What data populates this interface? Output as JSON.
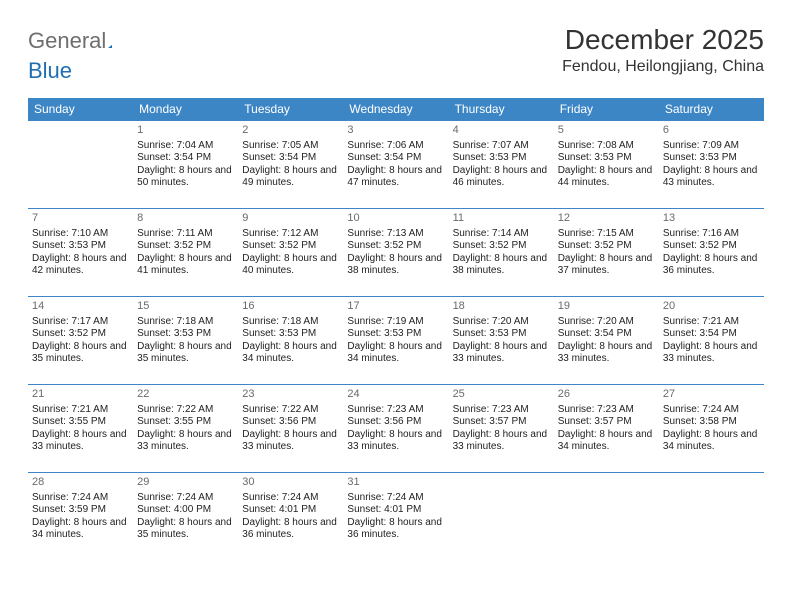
{
  "brand": {
    "part1": "General",
    "part2": "Blue"
  },
  "colors": {
    "header_bg": "#3d86c6",
    "header_text": "#ffffff",
    "row_border": "#3d86c6",
    "title_color": "#333333",
    "body_text": "#222222",
    "daynum_color": "#6a6a6a",
    "logo_gray": "#6e6e6e",
    "logo_blue": "#1f6fb2",
    "background": "#ffffff"
  },
  "typography": {
    "title_fontsize": 28,
    "location_fontsize": 16,
    "header_fontsize": 12,
    "cell_fontsize": 10,
    "daynum_fontsize": 11
  },
  "title": "December 2025",
  "location": "Fendou, Heilongjiang, China",
  "weekdays": [
    "Sunday",
    "Monday",
    "Tuesday",
    "Wednesday",
    "Thursday",
    "Friday",
    "Saturday"
  ],
  "weeks": [
    [
      {
        "day": "",
        "sunrise": "",
        "sunset": "",
        "daylight": ""
      },
      {
        "day": "1",
        "sunrise": "Sunrise: 7:04 AM",
        "sunset": "Sunset: 3:54 PM",
        "daylight": "Daylight: 8 hours and 50 minutes."
      },
      {
        "day": "2",
        "sunrise": "Sunrise: 7:05 AM",
        "sunset": "Sunset: 3:54 PM",
        "daylight": "Daylight: 8 hours and 49 minutes."
      },
      {
        "day": "3",
        "sunrise": "Sunrise: 7:06 AM",
        "sunset": "Sunset: 3:54 PM",
        "daylight": "Daylight: 8 hours and 47 minutes."
      },
      {
        "day": "4",
        "sunrise": "Sunrise: 7:07 AM",
        "sunset": "Sunset: 3:53 PM",
        "daylight": "Daylight: 8 hours and 46 minutes."
      },
      {
        "day": "5",
        "sunrise": "Sunrise: 7:08 AM",
        "sunset": "Sunset: 3:53 PM",
        "daylight": "Daylight: 8 hours and 44 minutes."
      },
      {
        "day": "6",
        "sunrise": "Sunrise: 7:09 AM",
        "sunset": "Sunset: 3:53 PM",
        "daylight": "Daylight: 8 hours and 43 minutes."
      }
    ],
    [
      {
        "day": "7",
        "sunrise": "Sunrise: 7:10 AM",
        "sunset": "Sunset: 3:53 PM",
        "daylight": "Daylight: 8 hours and 42 minutes."
      },
      {
        "day": "8",
        "sunrise": "Sunrise: 7:11 AM",
        "sunset": "Sunset: 3:52 PM",
        "daylight": "Daylight: 8 hours and 41 minutes."
      },
      {
        "day": "9",
        "sunrise": "Sunrise: 7:12 AM",
        "sunset": "Sunset: 3:52 PM",
        "daylight": "Daylight: 8 hours and 40 minutes."
      },
      {
        "day": "10",
        "sunrise": "Sunrise: 7:13 AM",
        "sunset": "Sunset: 3:52 PM",
        "daylight": "Daylight: 8 hours and 38 minutes."
      },
      {
        "day": "11",
        "sunrise": "Sunrise: 7:14 AM",
        "sunset": "Sunset: 3:52 PM",
        "daylight": "Daylight: 8 hours and 38 minutes."
      },
      {
        "day": "12",
        "sunrise": "Sunrise: 7:15 AM",
        "sunset": "Sunset: 3:52 PM",
        "daylight": "Daylight: 8 hours and 37 minutes."
      },
      {
        "day": "13",
        "sunrise": "Sunrise: 7:16 AM",
        "sunset": "Sunset: 3:52 PM",
        "daylight": "Daylight: 8 hours and 36 minutes."
      }
    ],
    [
      {
        "day": "14",
        "sunrise": "Sunrise: 7:17 AM",
        "sunset": "Sunset: 3:52 PM",
        "daylight": "Daylight: 8 hours and 35 minutes."
      },
      {
        "day": "15",
        "sunrise": "Sunrise: 7:18 AM",
        "sunset": "Sunset: 3:53 PM",
        "daylight": "Daylight: 8 hours and 35 minutes."
      },
      {
        "day": "16",
        "sunrise": "Sunrise: 7:18 AM",
        "sunset": "Sunset: 3:53 PM",
        "daylight": "Daylight: 8 hours and 34 minutes."
      },
      {
        "day": "17",
        "sunrise": "Sunrise: 7:19 AM",
        "sunset": "Sunset: 3:53 PM",
        "daylight": "Daylight: 8 hours and 34 minutes."
      },
      {
        "day": "18",
        "sunrise": "Sunrise: 7:20 AM",
        "sunset": "Sunset: 3:53 PM",
        "daylight": "Daylight: 8 hours and 33 minutes."
      },
      {
        "day": "19",
        "sunrise": "Sunrise: 7:20 AM",
        "sunset": "Sunset: 3:54 PM",
        "daylight": "Daylight: 8 hours and 33 minutes."
      },
      {
        "day": "20",
        "sunrise": "Sunrise: 7:21 AM",
        "sunset": "Sunset: 3:54 PM",
        "daylight": "Daylight: 8 hours and 33 minutes."
      }
    ],
    [
      {
        "day": "21",
        "sunrise": "Sunrise: 7:21 AM",
        "sunset": "Sunset: 3:55 PM",
        "daylight": "Daylight: 8 hours and 33 minutes."
      },
      {
        "day": "22",
        "sunrise": "Sunrise: 7:22 AM",
        "sunset": "Sunset: 3:55 PM",
        "daylight": "Daylight: 8 hours and 33 minutes."
      },
      {
        "day": "23",
        "sunrise": "Sunrise: 7:22 AM",
        "sunset": "Sunset: 3:56 PM",
        "daylight": "Daylight: 8 hours and 33 minutes."
      },
      {
        "day": "24",
        "sunrise": "Sunrise: 7:23 AM",
        "sunset": "Sunset: 3:56 PM",
        "daylight": "Daylight: 8 hours and 33 minutes."
      },
      {
        "day": "25",
        "sunrise": "Sunrise: 7:23 AM",
        "sunset": "Sunset: 3:57 PM",
        "daylight": "Daylight: 8 hours and 33 minutes."
      },
      {
        "day": "26",
        "sunrise": "Sunrise: 7:23 AM",
        "sunset": "Sunset: 3:57 PM",
        "daylight": "Daylight: 8 hours and 34 minutes."
      },
      {
        "day": "27",
        "sunrise": "Sunrise: 7:24 AM",
        "sunset": "Sunset: 3:58 PM",
        "daylight": "Daylight: 8 hours and 34 minutes."
      }
    ],
    [
      {
        "day": "28",
        "sunrise": "Sunrise: 7:24 AM",
        "sunset": "Sunset: 3:59 PM",
        "daylight": "Daylight: 8 hours and 34 minutes."
      },
      {
        "day": "29",
        "sunrise": "Sunrise: 7:24 AM",
        "sunset": "Sunset: 4:00 PM",
        "daylight": "Daylight: 8 hours and 35 minutes."
      },
      {
        "day": "30",
        "sunrise": "Sunrise: 7:24 AM",
        "sunset": "Sunset: 4:01 PM",
        "daylight": "Daylight: 8 hours and 36 minutes."
      },
      {
        "day": "31",
        "sunrise": "Sunrise: 7:24 AM",
        "sunset": "Sunset: 4:01 PM",
        "daylight": "Daylight: 8 hours and 36 minutes."
      },
      {
        "day": "",
        "sunrise": "",
        "sunset": "",
        "daylight": ""
      },
      {
        "day": "",
        "sunrise": "",
        "sunset": "",
        "daylight": ""
      },
      {
        "day": "",
        "sunrise": "",
        "sunset": "",
        "daylight": ""
      }
    ]
  ]
}
